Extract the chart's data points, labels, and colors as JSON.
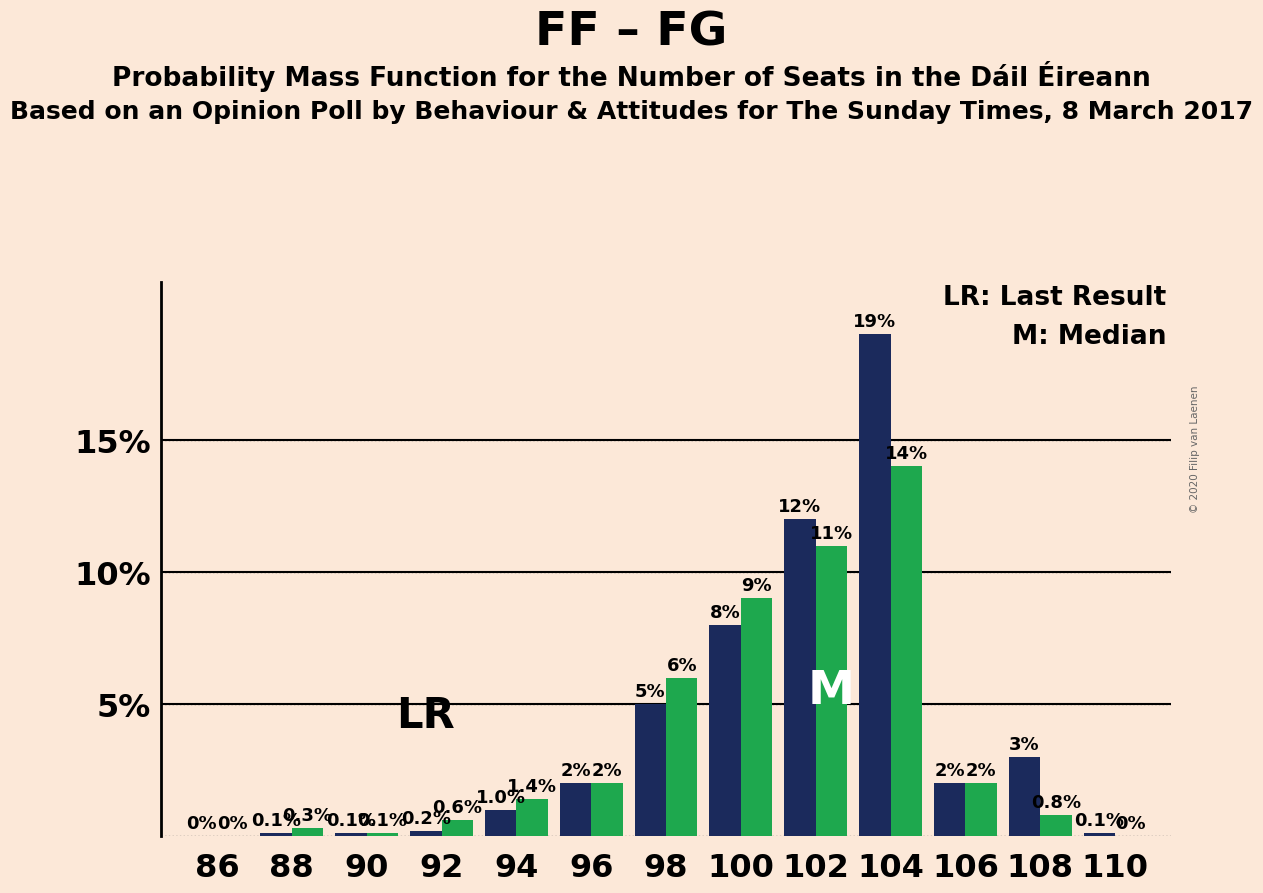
{
  "title": "FF – FG",
  "subtitle1": "Probability Mass Function for the Number of Seats in the Dáil Éireann",
  "subtitle2": "Based on an Opinion Poll by Behaviour & Attitudes for The Sunday Times, 8 March 2017",
  "copyright": "© 2020 Filip van Laenen",
  "legend_lr": "LR: Last Result",
  "legend_m": "M: Median",
  "seats": [
    86,
    88,
    90,
    92,
    94,
    96,
    98,
    100,
    102,
    104,
    106,
    108,
    110
  ],
  "navy_values": [
    0.0,
    0.1,
    0.1,
    0.2,
    1.0,
    2.0,
    5.0,
    8.0,
    12.0,
    19.0,
    2.0,
    3.0,
    0.1
  ],
  "green_values": [
    0.0,
    0.3,
    0.1,
    0.6,
    1.4,
    2.0,
    6.0,
    9.0,
    11.0,
    14.0,
    2.0,
    0.8,
    0.0
  ],
  "navy_labels": [
    "0%",
    "0.1%",
    "0.1%",
    "0.2%",
    "1.0%",
    "2%",
    "5%",
    "8%",
    "12%",
    "19%",
    "2%",
    "3%",
    "0.1%"
  ],
  "green_labels": [
    "0%",
    "0.3%",
    "0.1%",
    "0.6%",
    "1.4%",
    "2%",
    "6%",
    "9%",
    "11%",
    "14%",
    "2%",
    "0.8%",
    "0%"
  ],
  "navy_color": "#1b2a5c",
  "green_color": "#1ea84e",
  "background_color": "#fce8d8",
  "lr_seat_idx": 4,
  "median_seat_idx": 8,
  "ylim": [
    0,
    21
  ],
  "bar_width": 0.42,
  "title_fontsize": 34,
  "subtitle1_fontsize": 19,
  "subtitle2_fontsize": 18,
  "label_fontsize": 13,
  "tick_fontsize": 23,
  "legend_fontsize": 19
}
